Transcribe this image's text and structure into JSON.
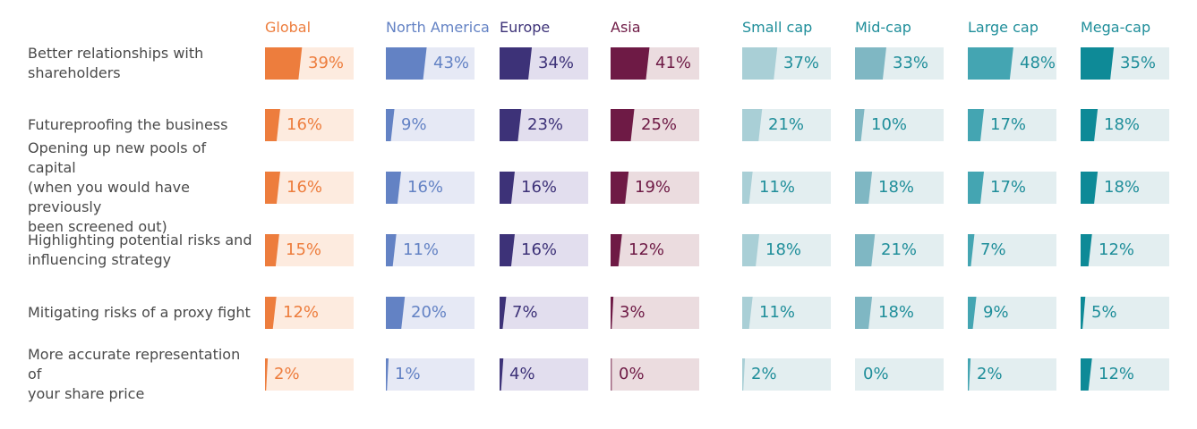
{
  "chart_data": {
    "type": "bar",
    "categories": [
      "Better relationships with shareholders",
      "Futureproofing the business",
      "Opening up new pools of capital (when you would have previously been screened out)",
      "Highlighting potential risks and influencing strategy",
      "Mitigating risks of a proxy fight",
      "More accurate representation of your share price"
    ],
    "value_max": 100,
    "series": [
      {
        "name": "Global",
        "values": [
          39,
          16,
          16,
          15,
          12,
          2
        ],
        "color": "#ED7D3D",
        "bg": "#FDEBDF",
        "text": "#ED7D3D"
      },
      {
        "name": "North America",
        "values": [
          43,
          9,
          16,
          11,
          20,
          1
        ],
        "color": "#6382C4",
        "bg": "#E6E9F5",
        "text": "#6382C4"
      },
      {
        "name": "Europe",
        "values": [
          34,
          23,
          16,
          16,
          7,
          4
        ],
        "color": "#3D3278",
        "bg": "#E2DEEE",
        "text": "#3D3278"
      },
      {
        "name": "Asia",
        "values": [
          41,
          25,
          19,
          12,
          3,
          0
        ],
        "color": "#6E1A45",
        "bg": "#EBDCDF",
        "text": "#6E1A45"
      },
      {
        "name": "Small cap",
        "values": [
          37,
          21,
          11,
          18,
          11,
          2
        ],
        "color": "#A9CFD6",
        "bg": "#E3EEF0",
        "text": "#1F8E9A"
      },
      {
        "name": "Mid-cap",
        "values": [
          33,
          10,
          18,
          21,
          18,
          0
        ],
        "color": "#7FB7C3",
        "bg": "#E3EEF0",
        "text": "#1F8E9A"
      },
      {
        "name": "Large cap",
        "values": [
          48,
          17,
          17,
          7,
          9,
          2
        ],
        "color": "#44A5B2",
        "bg": "#E3EEF0",
        "text": "#1F8E9A"
      },
      {
        "name": "Mega-cap",
        "values": [
          35,
          18,
          18,
          12,
          5,
          12
        ],
        "color": "#0E8A97",
        "bg": "#E3EEF0",
        "text": "#1F8E9A"
      }
    ],
    "label_color": "#4A4A4A"
  }
}
